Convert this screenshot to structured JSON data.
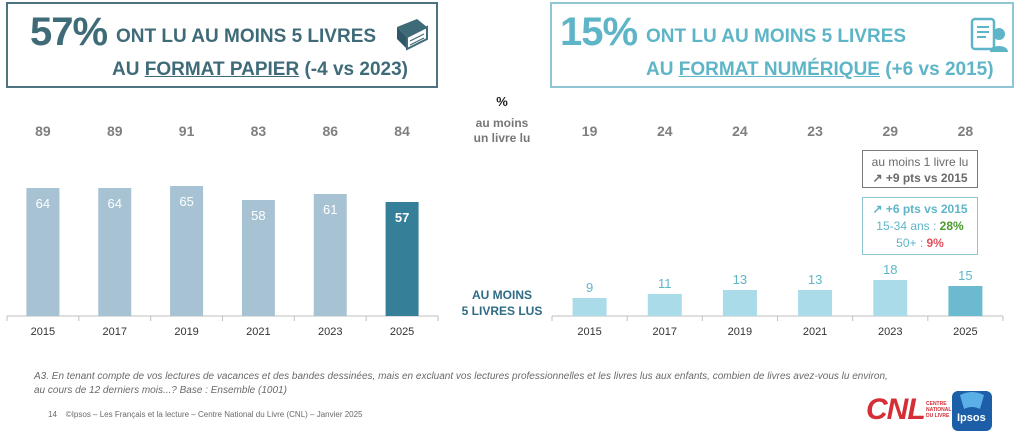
{
  "header_left": {
    "percent": "57%",
    "line1": "ONT LU AU MOINS 5 LIVRES",
    "line2_prefix": "AU ",
    "line2_underlined": "FORMAT PAPIER",
    "line2_suffix": " (-4 vs 2023)",
    "icon": "book-icon"
  },
  "header_right": {
    "percent": "15%",
    "line1": "ONT LU AU MOINS 5 LIVRES",
    "line2_prefix": "AU ",
    "line2_underlined": "FORMAT NUMÉRIQUE",
    "line2_suffix": " (+6 vs 2015)",
    "icon": "tablet-reader-icon"
  },
  "middle": {
    "title": "%",
    "top_label_line1": "au moins",
    "top_label_line2": "un livre lu",
    "bottom_label_line1": "AU MOINS",
    "bottom_label_line2": "5 LIVRES LUS"
  },
  "callout_grey": {
    "line1": "au moins 1 livre lu",
    "line2": "↗ +9 pts vs 2015"
  },
  "callout_blue": {
    "line1": "↗ +6 pts vs 2015",
    "line2_label": "15-34 ans : ",
    "line2_value": "28%",
    "line3_label": "50+ : ",
    "line3_value": "9%"
  },
  "colors": {
    "paper_bar": "#a7c3d3",
    "paper_bar_highlight": "#367f99",
    "digital_bar": "#a9dbe8",
    "digital_bar_highlight": "#6bbad0",
    "left_title": "#3f6b79",
    "right_title": "#5fb5c8",
    "green": "#4a9a2e",
    "red": "#e0505e"
  },
  "chart_data": [
    {
      "type": "bar",
      "title": "57% ONT LU AU MOINS 5 LIVRES AU FORMAT PAPIER (-4 vs 2023)",
      "categories": [
        "2015",
        "2017",
        "2019",
        "2021",
        "2023",
        "2025"
      ],
      "series": [
        {
          "name": "au moins un livre lu",
          "values": [
            89,
            89,
            91,
            83,
            86,
            84
          ]
        },
        {
          "name": "AU MOINS 5 LIVRES LUS",
          "values": [
            64,
            64,
            65,
            58,
            61,
            57
          ]
        }
      ],
      "ylabel": "%",
      "ylim": [
        0,
        100
      ]
    },
    {
      "type": "bar",
      "title": "15% ONT LU AU MOINS 5 LIVRES AU FORMAT NUMÉRIQUE (+6 vs 2015)",
      "categories": [
        "2015",
        "2017",
        "2019",
        "2021",
        "2023",
        "2025"
      ],
      "series": [
        {
          "name": "au moins un livre lu",
          "values": [
            19,
            24,
            24,
            23,
            29,
            28
          ]
        },
        {
          "name": "AU MOINS 5 LIVRES LUS",
          "values": [
            9,
            11,
            13,
            13,
            18,
            15
          ]
        }
      ],
      "ylabel": "%",
      "ylim": [
        0,
        100
      ]
    }
  ],
  "footnote": {
    "line1": "A3. En tenant compte de vos lectures de vacances et des bandes dessinées, mais en excluant vos lectures professionnelles et les livres lus aux enfants, combien de livres avez-vous lu environ,",
    "line2": "au cours de 12 derniers mois...? Base : Ensemble (1001)"
  },
  "footer": {
    "page": "14",
    "text": "©Ipsos – Les Français et la lecture – Centre National du Livre (CNL) – Janvier 2025"
  },
  "logos": {
    "cnl": "CNL",
    "cnl_sub1": "CENTRE",
    "cnl_sub2": "NATIONAL",
    "cnl_sub3": "DU LIVRE",
    "ipsos": "Ipsos"
  }
}
